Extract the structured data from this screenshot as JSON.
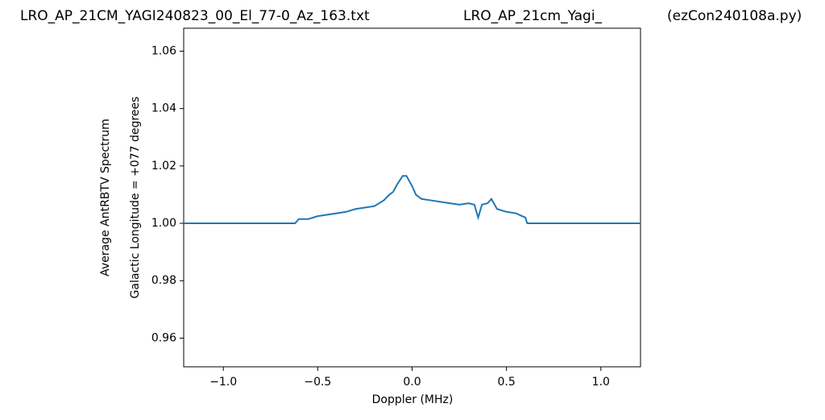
{
  "chart_data": {
    "type": "line",
    "titles": [
      "LRO_AP_21CM_YAGI240823_00_El_77-0_Az_163.txt",
      "LRO_AP_21cm_Yagi_",
      "(ezCon240108a.py)"
    ],
    "ylabel": [
      "Average AntRBTV Spectrum",
      "Galactic Longitude = +077 degrees"
    ],
    "xlabel": "Doppler (MHz)",
    "x": [
      -1.21,
      -0.62,
      -0.6,
      -0.55,
      -0.5,
      -0.45,
      -0.4,
      -0.35,
      -0.3,
      -0.25,
      -0.2,
      -0.15,
      -0.12,
      -0.1,
      -0.08,
      -0.05,
      -0.03,
      0.0,
      0.02,
      0.05,
      0.1,
      0.15,
      0.2,
      0.25,
      0.3,
      0.33,
      0.35,
      0.37,
      0.4,
      0.42,
      0.45,
      0.5,
      0.55,
      0.6,
      0.61,
      1.21
    ],
    "series": [
      {
        "color": "#1f77b4",
        "values": [
          1.0,
          1.0,
          1.0015,
          1.0015,
          1.0025,
          1.003,
          1.0035,
          1.004,
          1.005,
          1.0055,
          1.006,
          1.008,
          1.01,
          1.011,
          1.0135,
          1.0165,
          1.0165,
          1.013,
          1.01,
          1.0085,
          1.008,
          1.0075,
          1.007,
          1.0065,
          1.007,
          1.0065,
          1.002,
          1.0065,
          1.007,
          1.0085,
          1.005,
          1.004,
          1.0035,
          1.002,
          1.0,
          1.0
        ]
      }
    ],
    "xlim": [
      -1.21,
      1.21
    ],
    "ylim": [
      0.95,
      1.068
    ],
    "xticks": [
      {
        "value": -1.0,
        "label": "−1.0"
      },
      {
        "value": -0.5,
        "label": "−0.5"
      },
      {
        "value": 0,
        "label": "0.0"
      },
      0.5,
      {
        "value": 1,
        "label": "1.0"
      }
    ],
    "yticks": [
      0.96,
      0.98,
      {
        "value": 1,
        "label": "1.00"
      },
      1.02,
      1.04,
      1.06
    ]
  }
}
